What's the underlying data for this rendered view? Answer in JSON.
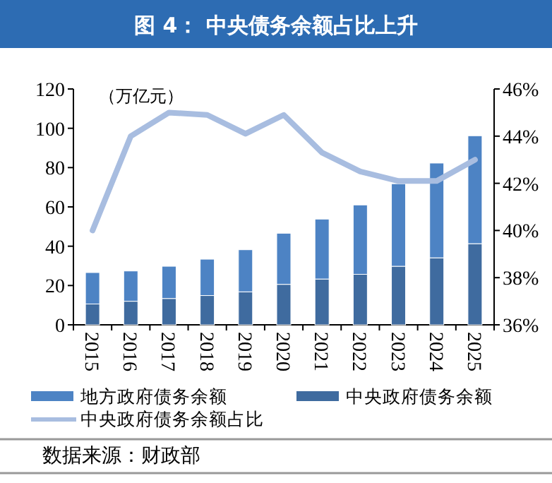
{
  "chart_data": {
    "type": "bar",
    "title": "图 4：  中央债务余额占比上升",
    "ylabel": "（万亿元）",
    "categories": [
      "2015",
      "2016",
      "2017",
      "2018",
      "2019",
      "2020",
      "2021",
      "2022",
      "2023",
      "2024",
      "2025"
    ],
    "stacked": true,
    "series": [
      {
        "name": "中央政府债务余额",
        "color": "#3f6b9f",
        "values": [
          10.6,
          12.0,
          13.4,
          14.9,
          16.8,
          20.6,
          23.3,
          25.7,
          29.8,
          34.1,
          41.3
        ]
      },
      {
        "name": "地方政府债务余额",
        "color": "#4d83c4",
        "values": [
          16.0,
          15.4,
          16.4,
          18.5,
          21.4,
          26.0,
          30.5,
          35.3,
          42.0,
          48.2,
          54.9
        ]
      },
      {
        "name": "中央政府债务余额占比",
        "type": "line",
        "axis": "y2",
        "color": "#a8bde0",
        "values": [
          40.0,
          44.0,
          45.0,
          44.9,
          44.1,
          44.9,
          43.3,
          42.5,
          42.1,
          42.1,
          43.0
        ]
      }
    ],
    "ylim": [
      0,
      120
    ],
    "yticks": [
      0,
      20,
      40,
      60,
      80,
      100,
      120
    ],
    "y2lim": [
      36,
      46
    ],
    "y2ticks": [
      {
        "value": 36,
        "label": "36%"
      },
      {
        "value": 38,
        "label": "38%"
      },
      {
        "value": 40,
        "label": "40%"
      },
      {
        "value": 42,
        "label": "42%"
      },
      {
        "value": 44,
        "label": "44%"
      },
      {
        "value": 46,
        "label": "46%"
      }
    ],
    "legend": "bottom",
    "annotations": [
      "数据来源：财政部"
    ]
  }
}
